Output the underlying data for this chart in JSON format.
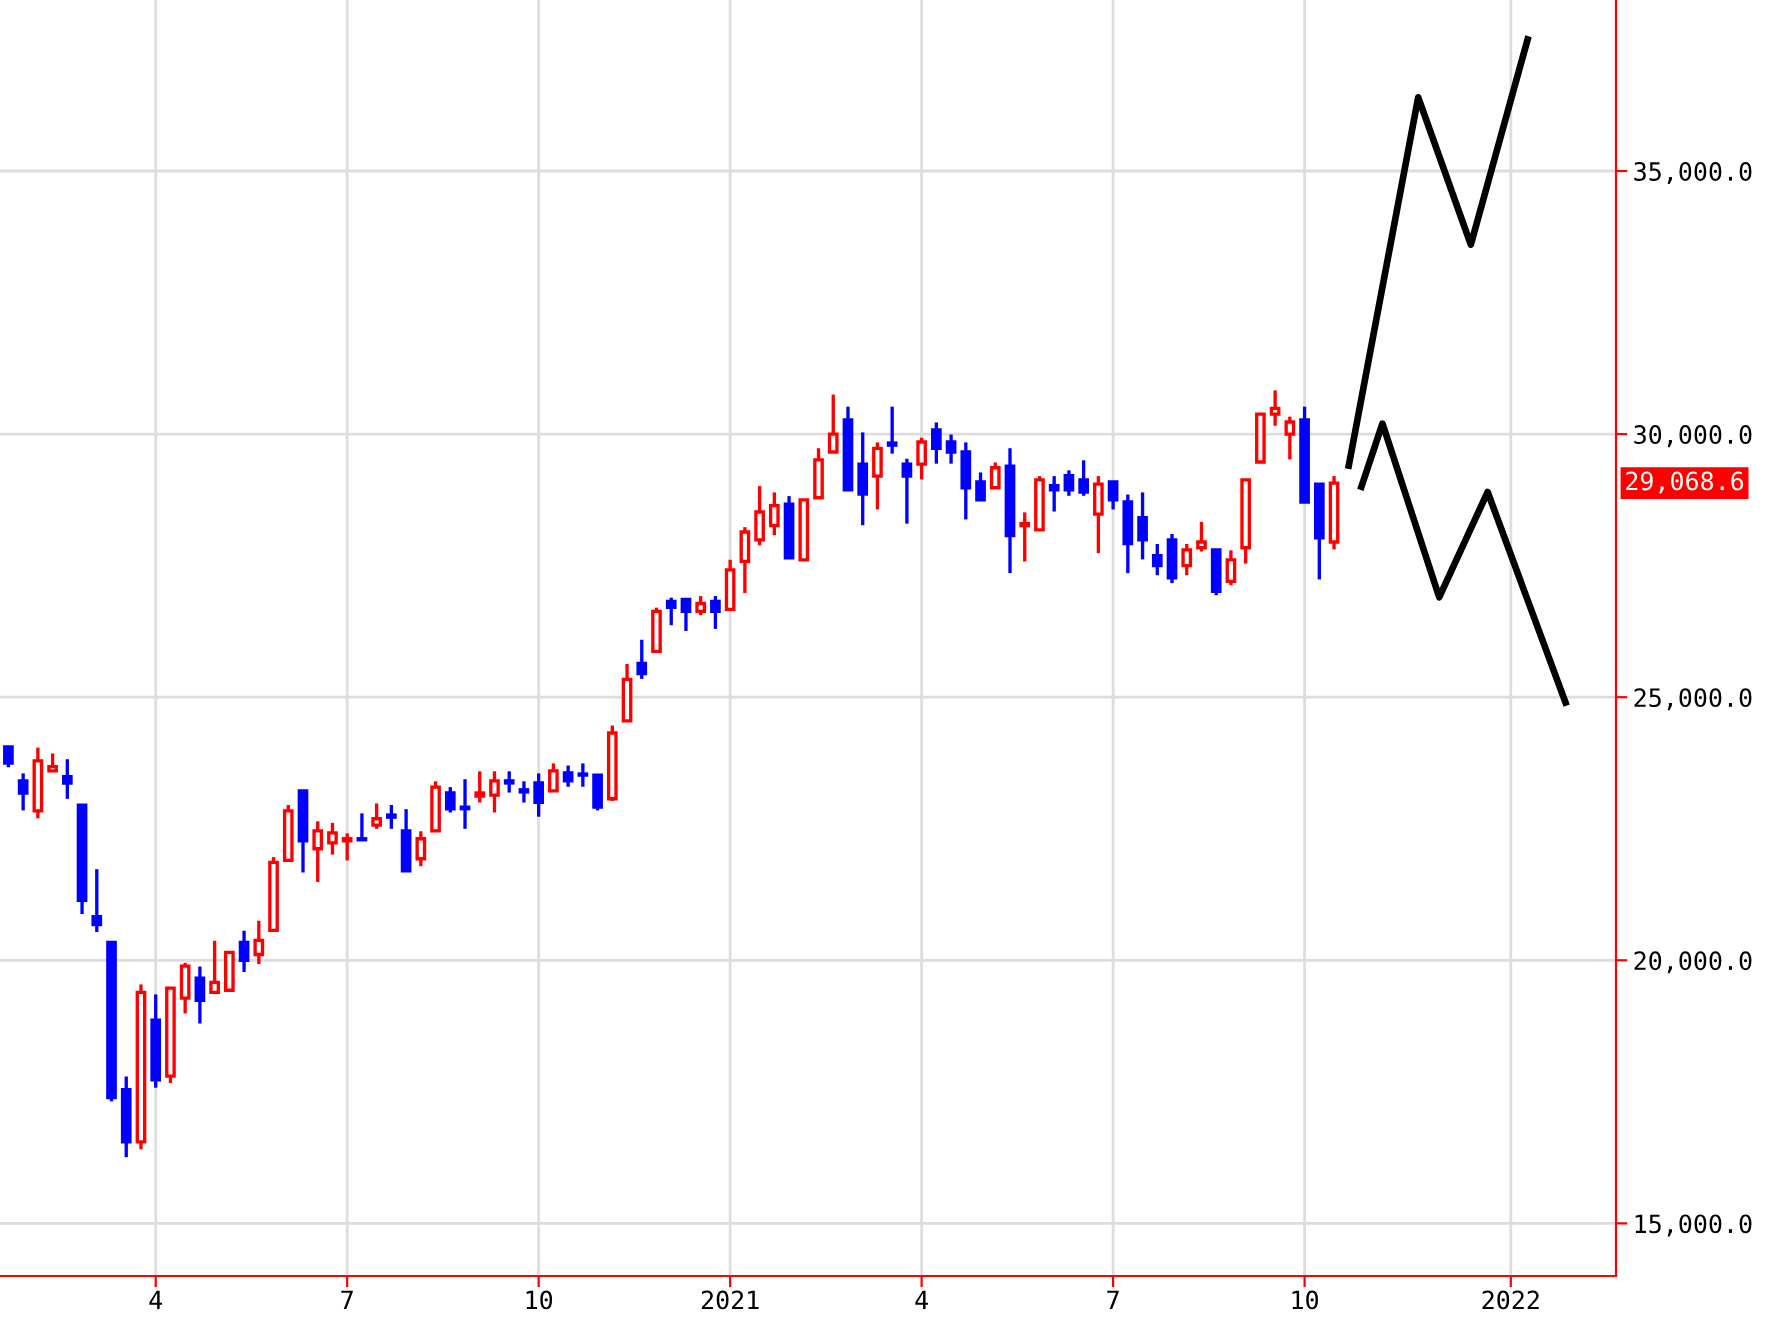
{
  "chart_data": {
    "type": "candlestick",
    "x": [
      "2020-01-24",
      "2020-01-31",
      "2020-02-07",
      "2020-02-14",
      "2020-02-21",
      "2020-02-28",
      "2020-03-06",
      "2020-03-13",
      "2020-03-20",
      "2020-03-27",
      "2020-04-03",
      "2020-04-10",
      "2020-04-17",
      "2020-04-24",
      "2020-05-01",
      "2020-05-08",
      "2020-05-15",
      "2020-05-22",
      "2020-05-29",
      "2020-06-05",
      "2020-06-12",
      "2020-06-19",
      "2020-06-26",
      "2020-07-03",
      "2020-07-10",
      "2020-07-17",
      "2020-07-24",
      "2020-07-31",
      "2020-08-07",
      "2020-08-14",
      "2020-08-21",
      "2020-08-28",
      "2020-09-04",
      "2020-09-11",
      "2020-09-18",
      "2020-09-25",
      "2020-10-02",
      "2020-10-09",
      "2020-10-16",
      "2020-10-23",
      "2020-10-30",
      "2020-11-06",
      "2020-11-13",
      "2020-11-20",
      "2020-11-27",
      "2020-12-04",
      "2020-12-11",
      "2020-12-18",
      "2020-12-25",
      "2021-01-01",
      "2021-01-08",
      "2021-01-15",
      "2021-01-22",
      "2021-01-29",
      "2021-02-05",
      "2021-02-12",
      "2021-02-19",
      "2021-02-26",
      "2021-03-05",
      "2021-03-12",
      "2021-03-19",
      "2021-03-26",
      "2021-04-02",
      "2021-04-09",
      "2021-04-16",
      "2021-04-23",
      "2021-04-30",
      "2021-05-07",
      "2021-05-14",
      "2021-05-21",
      "2021-05-28",
      "2021-06-04",
      "2021-06-11",
      "2021-06-18",
      "2021-06-25",
      "2021-07-02",
      "2021-07-09",
      "2021-07-16",
      "2021-07-23",
      "2021-07-30",
      "2021-08-06",
      "2021-08-13",
      "2021-08-20",
      "2021-08-27",
      "2021-09-03",
      "2021-09-10",
      "2021-09-17",
      "2021-09-24",
      "2021-10-01",
      "2021-10-08",
      "2021-10-15"
    ],
    "ohlc": [
      [
        24053,
        24053,
        23700,
        23750
      ],
      [
        23410,
        23520,
        22880,
        23180
      ],
      [
        22840,
        24010,
        22730,
        23790
      ],
      [
        23600,
        23900,
        23600,
        23680
      ],
      [
        23490,
        23790,
        23100,
        23370
      ],
      [
        22950,
        22950,
        20910,
        21140
      ],
      [
        20830,
        21700,
        20570,
        20680
      ],
      [
        20340,
        20340,
        17350,
        17390
      ],
      [
        17540,
        17760,
        16290,
        16550
      ],
      [
        16550,
        19510,
        16440,
        19390
      ],
      [
        18860,
        19320,
        17610,
        17730
      ],
      [
        17800,
        19470,
        17700,
        19470
      ],
      [
        19280,
        19920,
        19020,
        19890
      ],
      [
        19660,
        19850,
        18830,
        19240
      ],
      [
        19390,
        20340,
        19390,
        19580
      ],
      [
        19430,
        20150,
        19430,
        20150
      ],
      [
        20340,
        20530,
        19810,
        20000
      ],
      [
        20110,
        20720,
        19960,
        20380
      ],
      [
        20570,
        21930,
        20570,
        21860
      ],
      [
        21900,
        22920,
        21900,
        22840
      ],
      [
        23220,
        23220,
        21700,
        22270
      ],
      [
        22120,
        22610,
        21520,
        22460
      ],
      [
        22230,
        22580,
        22040,
        22420
      ],
      [
        22270,
        22380,
        21930,
        22310
      ],
      [
        22310,
        22760,
        22290,
        22290
      ],
      [
        22570,
        22950,
        22530,
        22690
      ],
      [
        22760,
        22920,
        22530,
        22720
      ],
      [
        22460,
        22840,
        21700,
        21700
      ],
      [
        21930,
        22420,
        21820,
        22310
      ],
      [
        22460,
        23370,
        22460,
        23290
      ],
      [
        23180,
        23260,
        22840,
        22880
      ],
      [
        22910,
        23410,
        22530,
        22880
      ],
      [
        23120,
        23560,
        23030,
        23180
      ],
      [
        23140,
        23560,
        22840,
        23410
      ],
      [
        23410,
        23560,
        23220,
        23370
      ],
      [
        23240,
        23370,
        23030,
        23200
      ],
      [
        23370,
        23520,
        22760,
        23000
      ],
      [
        23220,
        23710,
        23220,
        23600
      ],
      [
        23560,
        23670,
        23330,
        23410
      ],
      [
        23540,
        23710,
        23330,
        23520
      ],
      [
        23520,
        23520,
        22880,
        22910
      ],
      [
        23070,
        24430,
        23060,
        24320
      ],
      [
        24550,
        25600,
        24550,
        25340
      ],
      [
        25640,
        26060,
        25380,
        25450
      ],
      [
        25870,
        26670,
        25870,
        26630
      ],
      [
        26820,
        26860,
        26400,
        26710
      ],
      [
        26860,
        26860,
        26290,
        26630
      ],
      [
        26630,
        26890,
        26590,
        26780
      ],
      [
        26820,
        26890,
        26330,
        26630
      ],
      [
        26670,
        27580,
        26670,
        27420
      ],
      [
        27580,
        28200,
        27010,
        28140
      ],
      [
        27990,
        28980,
        27920,
        28520
      ],
      [
        28260,
        28860,
        28110,
        28640
      ],
      [
        28670,
        28790,
        27650,
        27650
      ],
      [
        27610,
        28750,
        27610,
        28750
      ],
      [
        28790,
        29700,
        28790,
        29510
      ],
      [
        29660,
        30720,
        29660,
        30000
      ],
      [
        30270,
        30490,
        28940,
        28940
      ],
      [
        29430,
        30000,
        28300,
        28860
      ],
      [
        29200,
        29810,
        28600,
        29730
      ],
      [
        29830,
        30490,
        29660,
        29790
      ],
      [
        29430,
        29500,
        28330,
        29200
      ],
      [
        29430,
        29900,
        29170,
        29850
      ],
      [
        30080,
        30190,
        29470,
        29730
      ],
      [
        29850,
        29960,
        29470,
        29660
      ],
      [
        29660,
        29810,
        28410,
        28980
      ],
      [
        29090,
        29240,
        28750,
        28750
      ],
      [
        28980,
        29430,
        28980,
        29360
      ],
      [
        29390,
        29700,
        27390,
        28070
      ],
      [
        28260,
        28480,
        27610,
        28300
      ],
      [
        28180,
        29170,
        28180,
        29130
      ],
      [
        29020,
        29170,
        28560,
        28940
      ],
      [
        29210,
        29280,
        28860,
        28940
      ],
      [
        29130,
        29470,
        28860,
        28900
      ],
      [
        28480,
        29170,
        27770,
        29050
      ],
      [
        29090,
        29090,
        28600,
        28750
      ],
      [
        28710,
        28820,
        27390,
        27920
      ],
      [
        28410,
        28860,
        27650,
        27990
      ],
      [
        27690,
        27880,
        27350,
        27500
      ],
      [
        27990,
        28070,
        27200,
        27270
      ],
      [
        27500,
        27880,
        27350,
        27800
      ],
      [
        27840,
        28300,
        27800,
        27950
      ],
      [
        27800,
        27800,
        26970,
        27010
      ],
      [
        27200,
        27760,
        27160,
        27610
      ],
      [
        27840,
        29130,
        27570,
        29130
      ],
      [
        29470,
        30380,
        29470,
        30380
      ],
      [
        30380,
        30800,
        30190,
        30490
      ],
      [
        30000,
        30300,
        29550,
        30230
      ],
      [
        30270,
        30490,
        28710,
        28710
      ],
      [
        29050,
        29050,
        27270,
        28030
      ],
      [
        27950,
        29170,
        27840,
        29068.6
      ]
    ],
    "colors": [
      "#0000ff",
      "#0000ff",
      "#ff0000",
      "#ff0000",
      "#0000ff",
      "#0000ff",
      "#0000ff",
      "#0000ff",
      "#0000ff",
      "#ff0000",
      "#0000ff",
      "#ff0000",
      "#ff0000",
      "#0000ff",
      "#ff0000",
      "#ff0000",
      "#0000ff",
      "#ff0000",
      "#ff0000",
      "#ff0000",
      "#0000ff",
      "#ff0000",
      "#ff0000",
      "#ff0000",
      "#0000ff",
      "#ff0000",
      "#0000ff",
      "#0000ff",
      "#ff0000",
      "#ff0000",
      "#0000ff",
      "#0000ff",
      "#ff0000",
      "#ff0000",
      "#0000ff",
      "#0000ff",
      "#0000ff",
      "#ff0000",
      "#0000ff",
      "#0000ff",
      "#0000ff",
      "#ff0000",
      "#ff0000",
      "#0000ff",
      "#ff0000",
      "#0000ff",
      "#0000ff",
      "#ff0000",
      "#0000ff",
      "#ff0000",
      "#ff0000",
      "#ff0000",
      "#ff0000",
      "#0000ff",
      "#ff0000",
      "#ff0000",
      "#ff0000",
      "#0000ff",
      "#0000ff",
      "#ff0000",
      "#0000ff",
      "#0000ff",
      "#ff0000",
      "#0000ff",
      "#0000ff",
      "#0000ff",
      "#0000ff",
      "#ff0000",
      "#0000ff",
      "#ff0000",
      "#ff0000",
      "#0000ff",
      "#0000ff",
      "#0000ff",
      "#ff0000",
      "#0000ff",
      "#0000ff",
      "#0000ff",
      "#0000ff",
      "#0000ff",
      "#ff0000",
      "#ff0000",
      "#0000ff",
      "#ff0000",
      "#ff0000",
      "#ff0000",
      "#ff0000",
      "#ff0000",
      "#0000ff",
      "#0000ff",
      "#ff0000"
    ],
    "series": [
      {
        "type": "line",
        "color": "#000000",
        "x": [
          "2021-10-22",
          "2021-11-24",
          "2021-12-19",
          "2022-01-15"
        ],
        "values": [
          29400,
          36400,
          33600,
          37500
        ]
      },
      {
        "type": "line",
        "color": "#000000",
        "x": [
          "2021-10-28",
          "2021-11-07",
          "2021-12-04",
          "2021-12-27",
          "2022-02-02"
        ],
        "values": [
          29000,
          30200,
          26900,
          28900,
          24900
        ]
      }
    ],
    "annotations": [
      "29,068.6"
    ],
    "xlim": [
      "2020-01-20",
      "2022-02-26"
    ],
    "ylim": [
      14000,
      38250
    ],
    "xticks": [
      {
        "value": "2020-04-03",
        "label": "4"
      },
      {
        "value": "2020-07-03",
        "label": "7"
      },
      {
        "value": "2020-10-02",
        "label": "10"
      },
      {
        "value": "2021-01-01",
        "label": "2021"
      },
      {
        "value": "2021-04-02",
        "label": "4"
      },
      {
        "value": "2021-07-02",
        "label": "7"
      },
      {
        "value": "2021-10-01",
        "label": "10"
      },
      {
        "value": "2022-01-07",
        "label": "2022"
      }
    ],
    "yticks": [
      {
        "value": 15000,
        "label": "15,000.0"
      },
      {
        "value": 20000,
        "label": "20,000.0"
      },
      {
        "value": 25000,
        "label": "25,000.0"
      },
      {
        "value": 30000,
        "label": "30,000.0"
      },
      {
        "value": 35000,
        "label": "35,000.0"
      }
    ],
    "grid": true
  }
}
